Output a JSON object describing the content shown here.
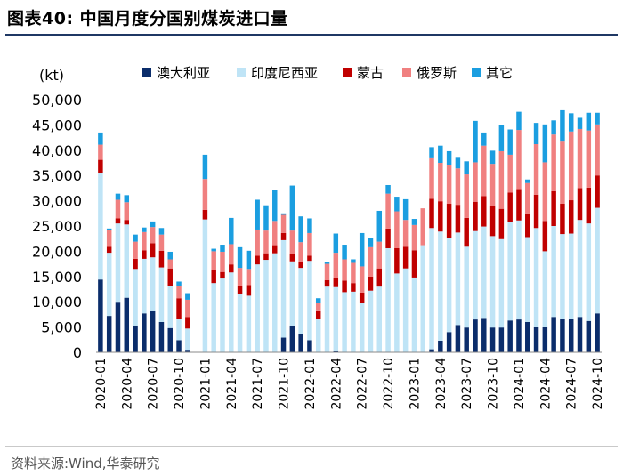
{
  "header": {
    "title": "图表40:  中国月度分国别煤炭进口量"
  },
  "footer": {
    "source": "资料来源:Wind,华泰研究"
  },
  "chart_data": {
    "type": "bar",
    "stacked": true,
    "ylabel": "(kt)",
    "ylim": [
      0,
      50000
    ],
    "yticks": [
      0,
      5000,
      10000,
      15000,
      20000,
      25000,
      30000,
      35000,
      40000,
      45000,
      50000
    ],
    "ytick_labels": [
      "0",
      "5,000",
      "10,000",
      "15,000",
      "20,000",
      "25,000",
      "30,000",
      "35,000",
      "40,000",
      "45,000",
      "50,000"
    ],
    "legend_position": "top",
    "categories": [
      "2020-01",
      "2020-02",
      "2020-03",
      "2020-04",
      "2020-05",
      "2020-06",
      "2020-07",
      "2020-08",
      "2020-09",
      "2020-10",
      "2020-11",
      "2020-12",
      "2021-01",
      "2021-02",
      "2021-03",
      "2021-04",
      "2021-05",
      "2021-06",
      "2021-07",
      "2021-08",
      "2021-09",
      "2021-10",
      "2021-11",
      "2021-12",
      "2022-01",
      "2022-02",
      "2022-03",
      "2022-04",
      "2022-05",
      "2022-06",
      "2022-07",
      "2022-08",
      "2022-09",
      "2022-10",
      "2022-11",
      "2022-12",
      "2023-01",
      "2023-02",
      "2023-03",
      "2023-04",
      "2023-05",
      "2023-06",
      "2023-07",
      "2023-08",
      "2023-09",
      "2023-10",
      "2023-11",
      "2023-12",
      "2024-01",
      "2024-02",
      "2024-03",
      "2024-04",
      "2024-05",
      "2024-06",
      "2024-07",
      "2024-08",
      "2024-09",
      "2024-10"
    ],
    "xtick_labels": [
      "2020-01",
      "2020-04",
      "2020-07",
      "2020-10",
      "2021-01",
      "2021-04",
      "2021-07",
      "2021-10",
      "2022-01",
      "2022-04",
      "2022-07",
      "2022-10",
      "2023-01",
      "2023-04",
      "2023-07",
      "2023-10",
      "2024-01",
      "2024-04",
      "2024-07",
      "2024-10"
    ],
    "series": [
      {
        "name": "澳大利亚",
        "color": "#0b2d6b",
        "values": [
          14400,
          7200,
          10000,
          10800,
          5300,
          7700,
          8300,
          6000,
          4800,
          2400,
          500,
          0,
          0,
          0,
          0,
          0,
          0,
          0,
          0,
          0,
          0,
          2900,
          5300,
          3700,
          2400,
          0,
          0,
          300,
          0,
          0,
          0,
          0,
          0,
          0,
          0,
          0,
          0,
          0,
          600,
          2300,
          4000,
          5400,
          4900,
          6500,
          6800,
          4900,
          4900,
          6300,
          6500,
          6000,
          5000,
          5000,
          7000,
          6700,
          6700,
          7000,
          6200,
          7700
        ]
      },
      {
        "name": "印度尼西亚",
        "color": "#bfe4f6",
        "values": [
          21000,
          12500,
          15500,
          14500,
          11200,
          10800,
          10500,
          10800,
          8300,
          4200,
          4200,
          0,
          26300,
          13700,
          14600,
          15800,
          11600,
          11200,
          17400,
          18300,
          19600,
          19300,
          12700,
          13000,
          15700,
          6600,
          13000,
          12600,
          11900,
          12000,
          9700,
          12200,
          13000,
          20600,
          15600,
          16600,
          14800,
          21200,
          24000,
          21600,
          18700,
          18300,
          16000,
          17500,
          18100,
          18100,
          17500,
          19500,
          19600,
          16800,
          19600,
          15000,
          18000,
          16700,
          16800,
          19200,
          19300,
          20900
        ]
      },
      {
        "name": "蒙古",
        "color": "#c00000",
        "values": [
          2700,
          1200,
          1000,
          900,
          2000,
          1700,
          2800,
          3300,
          3500,
          4100,
          2300,
          0,
          1900,
          2600,
          1300,
          1600,
          1500,
          2100,
          1700,
          1300,
          1600,
          1400,
          1500,
          1100,
          1000,
          1700,
          1300,
          1800,
          2300,
          1700,
          2100,
          2800,
          3600,
          3900,
          5000,
          4300,
          5400,
          0,
          5800,
          6000,
          6700,
          5500,
          5700,
          5800,
          6000,
          6000,
          6000,
          5800,
          6200,
          4700,
          6600,
          6000,
          6900,
          6000,
          6600,
          6300,
          7100,
          6400
        ]
      },
      {
        "name": "俄罗斯",
        "color": "#f08080",
        "values": [
          3000,
          3300,
          3700,
          3500,
          3400,
          3600,
          3200,
          3200,
          1800,
          2500,
          3400,
          0,
          6100,
          3700,
          4000,
          4000,
          3600,
          3200,
          5200,
          4500,
          4800,
          3600,
          4600,
          4000,
          4500,
          1400,
          3200,
          5000,
          4200,
          4000,
          5200,
          5800,
          5300,
          6900,
          7300,
          5300,
          5000,
          7300,
          8000,
          7600,
          7700,
          7200,
          8600,
          7800,
          10000,
          8300,
          11400,
          7500,
          11700,
          6000,
          10000,
          11600,
          11200,
          12300,
          13600,
          11700,
          11300,
          10100
        ]
      },
      {
        "name": "其它",
        "color": "#1b9ee0",
        "values": [
          2400,
          300,
          1200,
          1400,
          1400,
          900,
          1100,
          1300,
          1500,
          800,
          1300,
          0,
          4800,
          500,
          1400,
          5200,
          4100,
          3600,
          5900,
          5000,
          6100,
          300,
          8900,
          5100,
          2900,
          1000,
          300,
          3800,
          2900,
          700,
          6600,
          1900,
          6100,
          1700,
          2900,
          4100,
          1200,
          0,
          2200,
          3400,
          2700,
          2100,
          2600,
          8200,
          2600,
          2600,
          5100,
          5000,
          3600,
          700,
          4200,
          7500,
          2800,
          6200,
          3600,
          2200,
          3500,
          2300
        ]
      }
    ]
  }
}
